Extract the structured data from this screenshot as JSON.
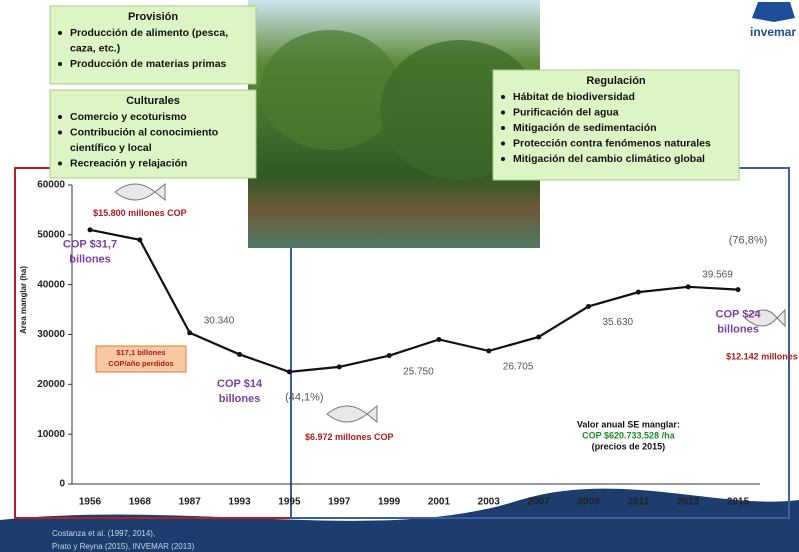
{
  "chart_data": {
    "type": "line",
    "y_label": "Area manglar (ha)",
    "categories": [
      "1956",
      "1968",
      "1987",
      "1993",
      "1995",
      "1997",
      "1999",
      "2001",
      "2003",
      "2007",
      "2009",
      "2011",
      "2013",
      "2015"
    ],
    "values": [
      51000,
      49000,
      30340,
      26000,
      22500,
      23500,
      25750,
      29000,
      26705,
      29500,
      35630,
      38500,
      39569,
      39000
    ],
    "value_labels": [
      null,
      null,
      "30.340",
      null,
      null,
      null,
      "25.750",
      null,
      "26.705",
      null,
      "35.630",
      null,
      "39.569",
      null
    ],
    "color": "#111111",
    "ylim": [
      0,
      60000
    ],
    "yticks": [
      0,
      10000,
      20000,
      30000,
      40000,
      50000,
      60000
    ],
    "annotations": [
      {
        "lines": [
          "$15.800 millones COP"
        ],
        "color": "#b01818",
        "x": 1,
        "y": 54300
      },
      {
        "lines": [
          "COP $31,7",
          "billones"
        ],
        "color": "#7a3fa0",
        "x": 0,
        "y": 48000
      },
      {
        "lines": [
          "COP $14",
          "billones"
        ],
        "color": "#7a3fa0",
        "x": 3,
        "y": 20000
      },
      {
        "lines": [
          "(44,1%)"
        ],
        "color": "#555555",
        "x": 4.3,
        "y": 17300
      },
      {
        "lines": [
          "$6.972 millones COP"
        ],
        "color": "#b01818",
        "x": 5.2,
        "y": 9300
      },
      {
        "lines": [
          "(76,8%)"
        ],
        "color": "#555555",
        "x": 13.2,
        "y": 48800
      },
      {
        "lines": [
          "COP $24",
          "billones"
        ],
        "color": "#7a3fa0",
        "x": 13,
        "y": 34000
      },
      {
        "lines": [
          "$12.142 millones COP"
        ],
        "color": "#b01818",
        "x": 13.7,
        "y": 25500
      },
      {
        "lines": [
          "Valor anual SE manglar:"
        ],
        "color": "#111111",
        "x": 10.8,
        "y": 11800
      },
      {
        "lines": [
          "COP $620.733.528 /ha"
        ],
        "color": "#1a8a2a",
        "x": 10.8,
        "y": 9600
      },
      {
        "lines": [
          "(precios de 2015)"
        ],
        "color": "#111111",
        "x": 10.8,
        "y": 7400
      }
    ],
    "loss_box": [
      "$17,1 billones",
      "COP/año perdidos"
    ]
  },
  "service_boxes": [
    {
      "title": "Provisión",
      "items": [
        "Producción de alimento (pesca,",
        "caza, etc.)",
        "Producción de materias primas"
      ]
    },
    {
      "title": "Culturales",
      "items": [
        "Comercio y ecoturismo",
        "Contribución al conocimiento",
        "científico y local",
        "Recreación y relajación"
      ]
    },
    {
      "title": "Regulación",
      "items": [
        "Hábitat de biodiversidad",
        "Purificación del agua",
        "Mitigación de sedimentación",
        "Protección contra fenómenos naturales",
        "Mitigación del cambio climático global"
      ]
    }
  ],
  "logo": "invemar",
  "references": [
    "Costanza et al. (1997, 2014),",
    "Prato y Reyna (2015), INVEMAR (2013)"
  ]
}
